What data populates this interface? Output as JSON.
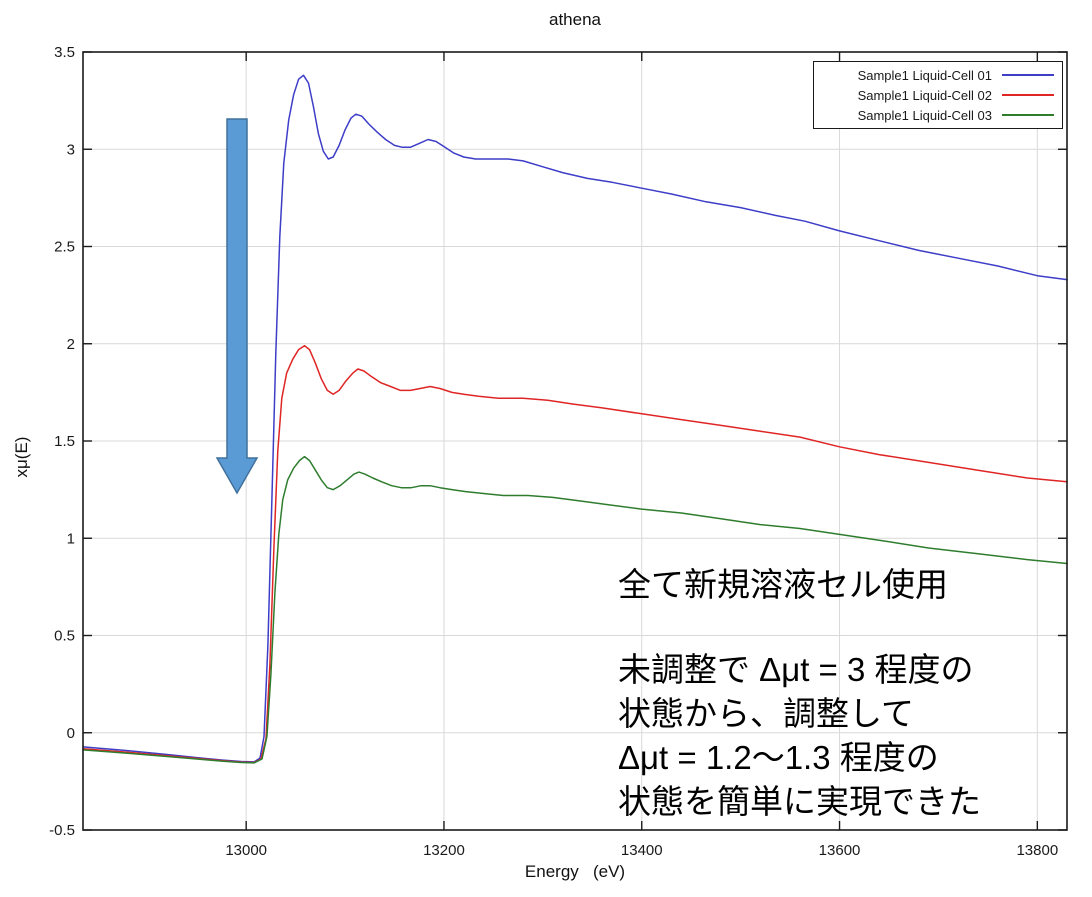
{
  "chart_data": {
    "type": "line",
    "title": "athena",
    "xlabel": "Energy   (eV)",
    "ylabel": "xμ(E)",
    "xlim": [
      12835,
      13830
    ],
    "ylim": [
      -0.5,
      3.5
    ],
    "xticks": [
      13000,
      13200,
      13400,
      13600,
      13800
    ],
    "yticks": [
      -0.5,
      0,
      0.5,
      1,
      1.5,
      2,
      2.5,
      3,
      3.5
    ],
    "grid": true,
    "grid_color": "#d9d9d9",
    "axis_color": "#1a1a1a",
    "legend_position": "top-right",
    "series": [
      {
        "name": "Sample1 Liquid-Cell 01",
        "color": "#3d3dc8",
        "points": [
          [
            12835,
            -0.073
          ],
          [
            12880,
            -0.092
          ],
          [
            12920,
            -0.112
          ],
          [
            12950,
            -0.128
          ],
          [
            12975,
            -0.14
          ],
          [
            12995,
            -0.148
          ],
          [
            13008,
            -0.15
          ],
          [
            13014,
            -0.13
          ],
          [
            13018,
            -0.02
          ],
          [
            13022,
            0.45
          ],
          [
            13026,
            1.2
          ],
          [
            13030,
            1.95
          ],
          [
            13034,
            2.55
          ],
          [
            13038,
            2.93
          ],
          [
            13043,
            3.15
          ],
          [
            13048,
            3.28
          ],
          [
            13053,
            3.36
          ],
          [
            13058,
            3.38
          ],
          [
            13063,
            3.34
          ],
          [
            13068,
            3.22
          ],
          [
            13073,
            3.08
          ],
          [
            13078,
            2.99
          ],
          [
            13083,
            2.95
          ],
          [
            13088,
            2.96
          ],
          [
            13094,
            3.02
          ],
          [
            13100,
            3.1
          ],
          [
            13106,
            3.16
          ],
          [
            13111,
            3.18
          ],
          [
            13117,
            3.17
          ],
          [
            13124,
            3.13
          ],
          [
            13132,
            3.09
          ],
          [
            13141,
            3.05
          ],
          [
            13150,
            3.02
          ],
          [
            13158,
            3.01
          ],
          [
            13166,
            3.01
          ],
          [
            13175,
            3.03
          ],
          [
            13184,
            3.05
          ],
          [
            13192,
            3.04
          ],
          [
            13201,
            3.01
          ],
          [
            13210,
            2.98
          ],
          [
            13220,
            2.96
          ],
          [
            13232,
            2.95
          ],
          [
            13248,
            2.95
          ],
          [
            13265,
            2.95
          ],
          [
            13280,
            2.94
          ],
          [
            13300,
            2.91
          ],
          [
            13320,
            2.88
          ],
          [
            13345,
            2.85
          ],
          [
            13370,
            2.83
          ],
          [
            13400,
            2.8
          ],
          [
            13430,
            2.77
          ],
          [
            13465,
            2.73
          ],
          [
            13500,
            2.7
          ],
          [
            13535,
            2.66
          ],
          [
            13565,
            2.63
          ],
          [
            13600,
            2.58
          ],
          [
            13640,
            2.53
          ],
          [
            13680,
            2.48
          ],
          [
            13720,
            2.44
          ],
          [
            13760,
            2.4
          ],
          [
            13800,
            2.35
          ],
          [
            13830,
            2.33
          ]
        ]
      },
      {
        "name": "Sample1 Liquid-Cell 02",
        "color": "#e02525",
        "points": [
          [
            12835,
            -0.082
          ],
          [
            12880,
            -0.1
          ],
          [
            12920,
            -0.118
          ],
          [
            12950,
            -0.132
          ],
          [
            12975,
            -0.143
          ],
          [
            12995,
            -0.151
          ],
          [
            13008,
            -0.153
          ],
          [
            13015,
            -0.135
          ],
          [
            13020,
            -0.03
          ],
          [
            13024,
            0.35
          ],
          [
            13028,
            0.95
          ],
          [
            13032,
            1.45
          ],
          [
            13036,
            1.72
          ],
          [
            13041,
            1.85
          ],
          [
            13047,
            1.92
          ],
          [
            13053,
            1.97
          ],
          [
            13059,
            1.99
          ],
          [
            13064,
            1.97
          ],
          [
            13070,
            1.9
          ],
          [
            13076,
            1.82
          ],
          [
            13082,
            1.76
          ],
          [
            13088,
            1.74
          ],
          [
            13094,
            1.76
          ],
          [
            13101,
            1.81
          ],
          [
            13108,
            1.85
          ],
          [
            13113,
            1.87
          ],
          [
            13119,
            1.86
          ],
          [
            13127,
            1.83
          ],
          [
            13136,
            1.8
          ],
          [
            13146,
            1.78
          ],
          [
            13156,
            1.76
          ],
          [
            13166,
            1.76
          ],
          [
            13176,
            1.77
          ],
          [
            13186,
            1.78
          ],
          [
            13196,
            1.77
          ],
          [
            13208,
            1.75
          ],
          [
            13220,
            1.74
          ],
          [
            13235,
            1.73
          ],
          [
            13255,
            1.72
          ],
          [
            13280,
            1.72
          ],
          [
            13305,
            1.71
          ],
          [
            13330,
            1.69
          ],
          [
            13360,
            1.67
          ],
          [
            13400,
            1.64
          ],
          [
            13440,
            1.61
          ],
          [
            13480,
            1.58
          ],
          [
            13520,
            1.55
          ],
          [
            13560,
            1.52
          ],
          [
            13600,
            1.47
          ],
          [
            13640,
            1.43
          ],
          [
            13690,
            1.39
          ],
          [
            13740,
            1.35
          ],
          [
            13790,
            1.31
          ],
          [
            13830,
            1.29
          ]
        ]
      },
      {
        "name": "Sample1 Liquid-Cell 03",
        "color": "#2e7d2e",
        "points": [
          [
            12835,
            -0.088
          ],
          [
            12880,
            -0.105
          ],
          [
            12920,
            -0.122
          ],
          [
            12950,
            -0.135
          ],
          [
            12975,
            -0.146
          ],
          [
            12995,
            -0.153
          ],
          [
            13008,
            -0.155
          ],
          [
            13016,
            -0.135
          ],
          [
            13021,
            -0.02
          ],
          [
            13025,
            0.3
          ],
          [
            13029,
            0.72
          ],
          [
            13033,
            1.02
          ],
          [
            13037,
            1.2
          ],
          [
            13042,
            1.3
          ],
          [
            13048,
            1.36
          ],
          [
            13054,
            1.4
          ],
          [
            13059,
            1.42
          ],
          [
            13064,
            1.4
          ],
          [
            13070,
            1.35
          ],
          [
            13076,
            1.3
          ],
          [
            13082,
            1.26
          ],
          [
            13088,
            1.25
          ],
          [
            13095,
            1.27
          ],
          [
            13102,
            1.3
          ],
          [
            13109,
            1.33
          ],
          [
            13114,
            1.34
          ],
          [
            13120,
            1.33
          ],
          [
            13128,
            1.31
          ],
          [
            13137,
            1.29
          ],
          [
            13147,
            1.27
          ],
          [
            13157,
            1.26
          ],
          [
            13167,
            1.26
          ],
          [
            13177,
            1.27
          ],
          [
            13186,
            1.27
          ],
          [
            13196,
            1.26
          ],
          [
            13208,
            1.25
          ],
          [
            13222,
            1.24
          ],
          [
            13240,
            1.23
          ],
          [
            13260,
            1.22
          ],
          [
            13285,
            1.22
          ],
          [
            13310,
            1.21
          ],
          [
            13340,
            1.19
          ],
          [
            13370,
            1.17
          ],
          [
            13400,
            1.15
          ],
          [
            13440,
            1.13
          ],
          [
            13480,
            1.1
          ],
          [
            13520,
            1.07
          ],
          [
            13560,
            1.05
          ],
          [
            13600,
            1.02
          ],
          [
            13640,
            0.99
          ],
          [
            13690,
            0.95
          ],
          [
            13740,
            0.92
          ],
          [
            13790,
            0.89
          ],
          [
            13830,
            0.87
          ]
        ]
      }
    ]
  },
  "annotations": {
    "arrow_fill": "#5b9bd5",
    "arrow_stroke": "#41719c",
    "note1": "全て新規溶液セル使用",
    "note2_lines": [
      "未調整で Δμt = 3 程度の",
      "状態から、調整して",
      "Δμt = 1.2〜1.3 程度の",
      "状態を簡単に実現できた"
    ]
  }
}
